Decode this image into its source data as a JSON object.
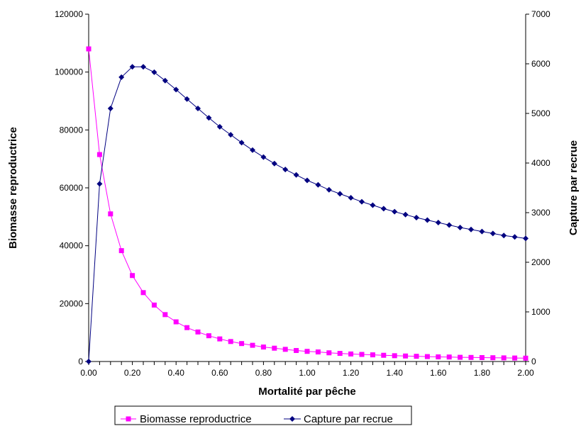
{
  "chart_data": {
    "type": "line",
    "xlabel": "Mortalité par pêche",
    "ylabel_left": "Biomasse reproductrice",
    "ylabel_right": "Capture par recrue",
    "x_tick_labels": [
      "0.00",
      "0.20",
      "0.40",
      "0.60",
      "0.80",
      "1.00",
      "1.20",
      "1.40",
      "1.60",
      "1.80",
      "2.00"
    ],
    "x_ticks": [
      0,
      0.2,
      0.4,
      0.6,
      0.8,
      1.0,
      1.2,
      1.4,
      1.6,
      1.8,
      2.0
    ],
    "xlim": [
      0,
      2.0
    ],
    "ylim_left": [
      0,
      120000
    ],
    "ylim_right": [
      0,
      7000
    ],
    "y_left_ticks": [
      0,
      20000,
      40000,
      60000,
      80000,
      100000,
      120000
    ],
    "y_left_tick_labels": [
      "0",
      "20000",
      "40000",
      "60000",
      "80000",
      "100000",
      "120000"
    ],
    "y_right_ticks": [
      0,
      1000,
      2000,
      3000,
      4000,
      5000,
      6000,
      7000
    ],
    "y_right_tick_labels": [
      "0",
      "1000",
      "2000",
      "3000",
      "4000",
      "5000",
      "6000",
      "7000"
    ],
    "grid": false,
    "legend_position": "bottom-center",
    "x": [
      0.0,
      0.05,
      0.1,
      0.15,
      0.2,
      0.25,
      0.3,
      0.35,
      0.4,
      0.45,
      0.5,
      0.55,
      0.6,
      0.65,
      0.7,
      0.75,
      0.8,
      0.85,
      0.9,
      0.95,
      1.0,
      1.05,
      1.1,
      1.15,
      1.2,
      1.25,
      1.3,
      1.35,
      1.4,
      1.45,
      1.5,
      1.55,
      1.6,
      1.65,
      1.7,
      1.75,
      1.8,
      1.85,
      1.9,
      1.95,
      2.0
    ],
    "series": [
      {
        "name": "Biomasse reproductrice",
        "axis": "left",
        "color": "#ff00ff",
        "marker": "square",
        "values": [
          108000,
          71500,
          51000,
          38300,
          29700,
          23800,
          19500,
          16200,
          13700,
          11700,
          10200,
          8900,
          7800,
          6900,
          6200,
          5600,
          5000,
          4600,
          4200,
          3800,
          3500,
          3300,
          3000,
          2800,
          2600,
          2450,
          2300,
          2150,
          2000,
          1900,
          1800,
          1700,
          1600,
          1550,
          1450,
          1400,
          1350,
          1300,
          1250,
          1200,
          1150
        ]
      },
      {
        "name": "Capture par recrue",
        "axis": "right",
        "color": "#000080",
        "marker": "diamond",
        "values": [
          0,
          3580,
          5100,
          5730,
          5940,
          5940,
          5830,
          5660,
          5480,
          5290,
          5100,
          4910,
          4730,
          4570,
          4410,
          4260,
          4120,
          3990,
          3870,
          3760,
          3650,
          3560,
          3460,
          3380,
          3300,
          3220,
          3150,
          3080,
          3020,
          2960,
          2900,
          2850,
          2800,
          2750,
          2700,
          2660,
          2620,
          2580,
          2540,
          2510,
          2480
        ]
      }
    ]
  }
}
